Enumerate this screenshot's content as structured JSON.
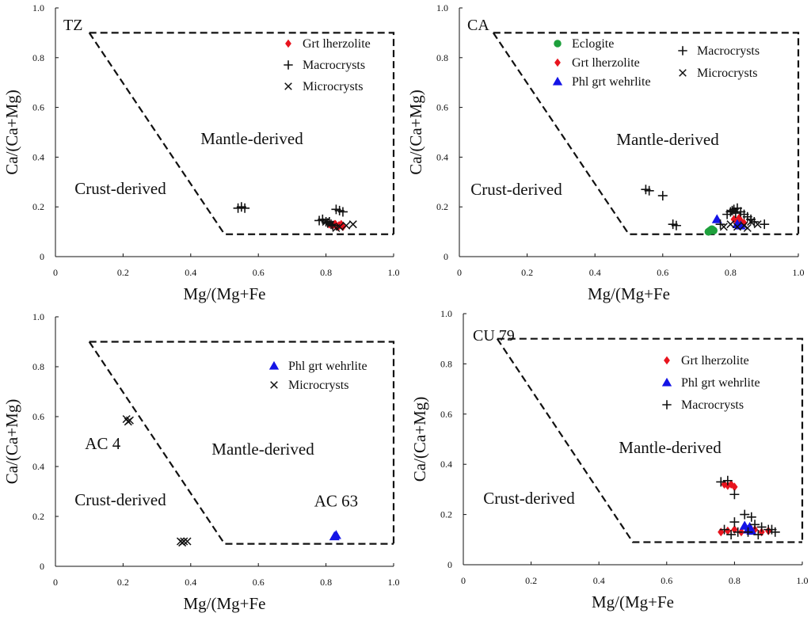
{
  "chart_data": [
    {
      "type": "scatter",
      "panel_id": "tz",
      "title": "TZ",
      "xlabel": "Mg/(Mg+Fe",
      "ylabel": "Ca/(Ca+Mg)",
      "xlim": [
        0,
        1.0
      ],
      "ylim": [
        0,
        1.0
      ],
      "x_ticks": [
        "0",
        "0.2",
        "0.4",
        "0.6",
        "0.8",
        "1.0"
      ],
      "y_ticks": [
        "0",
        "0.2",
        "0.4",
        "0.6",
        "0.8",
        "1.0"
      ],
      "boundary": [
        [
          0.1,
          0.9
        ],
        [
          0.5,
          0.09
        ],
        [
          1.0,
          0.09
        ]
      ],
      "top_line": [
        [
          0.1,
          0.9
        ],
        [
          1.0,
          0.9
        ]
      ],
      "regions": {
        "mantle": "Mantle-derived",
        "crust": "Crust-derived"
      },
      "legend": [
        {
          "label": "Grt lherzolite",
          "marker": "diamond",
          "color": "#e8141e"
        },
        {
          "label": "Macrocrysts",
          "marker": "plus",
          "color": "#111111"
        },
        {
          "label": "Microcrysts",
          "marker": "cross",
          "color": "#111111"
        }
      ],
      "series": [
        {
          "name": "Grt lherzolite",
          "marker": "diamond",
          "color": "#e8141e",
          "x": [
            0.81,
            0.82,
            0.825,
            0.83,
            0.835,
            0.84,
            0.845,
            0.85,
            0.828,
            0.838
          ],
          "y": [
            0.13,
            0.125,
            0.13,
            0.125,
            0.12,
            0.125,
            0.13,
            0.12,
            0.13,
            0.125
          ]
        },
        {
          "name": "Macrocrysts",
          "marker": "plus",
          "color": "#111111",
          "x": [
            0.54,
            0.55,
            0.56,
            0.78,
            0.79,
            0.8,
            0.805,
            0.815,
            0.83,
            0.84,
            0.85,
            0.82,
            0.81
          ],
          "y": [
            0.195,
            0.2,
            0.195,
            0.145,
            0.15,
            0.14,
            0.135,
            0.13,
            0.19,
            0.185,
            0.18,
            0.125,
            0.14
          ]
        },
        {
          "name": "Microcrysts",
          "marker": "cross",
          "color": "#111111",
          "x": [
            0.8,
            0.84,
            0.86,
            0.88,
            0.83
          ],
          "y": [
            0.14,
            0.12,
            0.125,
            0.13,
            0.115
          ]
        }
      ]
    },
    {
      "type": "scatter",
      "panel_id": "ca",
      "title": "CA",
      "xlabel": "Mg/(Mg+Fe",
      "ylabel": "Ca/(Ca+Mg)",
      "xlim": [
        0,
        1.0
      ],
      "ylim": [
        0,
        1.0
      ],
      "x_ticks": [
        "0",
        "0.2",
        "0.4",
        "0.6",
        "0.8",
        "1.0"
      ],
      "y_ticks": [
        "0",
        "0.2",
        "0.4",
        "0.6",
        "0.8",
        "1.0"
      ],
      "boundary": [
        [
          0.1,
          0.9
        ],
        [
          0.5,
          0.09
        ],
        [
          1.0,
          0.09
        ]
      ],
      "top_line": [
        [
          0.1,
          0.9
        ],
        [
          1.0,
          0.9
        ]
      ],
      "regions": {
        "mantle": "Mantle-derived",
        "crust": "Crust-derived"
      },
      "legend": [
        {
          "label": "Eclogite",
          "marker": "circle",
          "color": "#1ea03c"
        },
        {
          "label": "Grt lherzolite",
          "marker": "diamond",
          "color": "#e8141e"
        },
        {
          "label": "Phl grt wehrlite",
          "marker": "triangle",
          "color": "#1414e6"
        },
        {
          "label": "Macrocrysts",
          "marker": "plus",
          "color": "#111111"
        },
        {
          "label": "Microcrysts",
          "marker": "cross",
          "color": "#111111"
        }
      ],
      "series": [
        {
          "name": "Eclogite",
          "marker": "circle",
          "color": "#1ea03c",
          "x": [
            0.735,
            0.74,
            0.745,
            0.75
          ],
          "y": [
            0.1,
            0.105,
            0.11,
            0.105
          ]
        },
        {
          "name": "Grt lherzolite",
          "marker": "diamond",
          "color": "#e8141e",
          "x": [
            0.81,
            0.82,
            0.83,
            0.84,
            0.825
          ],
          "y": [
            0.15,
            0.14,
            0.145,
            0.135,
            0.155
          ]
        },
        {
          "name": "Phl grt wehrlite",
          "marker": "triangle",
          "color": "#1414e6",
          "x": [
            0.76,
            0.82,
            0.83
          ],
          "y": [
            0.15,
            0.13,
            0.125
          ]
        },
        {
          "name": "Macrocrysts",
          "marker": "plus",
          "color": "#111111",
          "x": [
            0.55,
            0.56,
            0.6,
            0.63,
            0.64,
            0.77,
            0.79,
            0.8,
            0.81,
            0.82,
            0.83,
            0.84,
            0.85,
            0.86,
            0.87,
            0.9,
            0.805,
            0.815
          ],
          "y": [
            0.27,
            0.265,
            0.245,
            0.13,
            0.125,
            0.13,
            0.17,
            0.18,
            0.19,
            0.195,
            0.18,
            0.17,
            0.16,
            0.15,
            0.14,
            0.13,
            0.185,
            0.175
          ]
        },
        {
          "name": "Microcrysts",
          "marker": "cross",
          "color": "#111111",
          "x": [
            0.78,
            0.8,
            0.82,
            0.84,
            0.86,
            0.88,
            0.85
          ],
          "y": [
            0.12,
            0.13,
            0.12,
            0.125,
            0.14,
            0.13,
            0.115
          ]
        }
      ]
    },
    {
      "type": "scatter",
      "panel_id": "ac",
      "title": "",
      "xlabel": "Mg/(Mg+Fe",
      "ylabel": "Ca/(Ca+Mg)",
      "xlim": [
        0,
        1.0
      ],
      "ylim": [
        0,
        1.0
      ],
      "x_ticks": [
        "0",
        "0.2",
        "0.4",
        "0.6",
        "0.8",
        "1.0"
      ],
      "y_ticks": [
        "0",
        "0.2",
        "0.4",
        "0.6",
        "0.8",
        "1.0"
      ],
      "boundary": [
        [
          0.1,
          0.9
        ],
        [
          0.5,
          0.09
        ],
        [
          1.0,
          0.09
        ]
      ],
      "top_line": [
        [
          0.1,
          0.9
        ],
        [
          1.0,
          0.9
        ]
      ],
      "regions": {
        "mantle": "Mantle-derived",
        "crust": "Crust-derived"
      },
      "annotations": [
        {
          "text": "AC 4",
          "x": 0.14,
          "y": 0.47
        },
        {
          "text": "AC 63",
          "x": 0.83,
          "y": 0.24
        }
      ],
      "legend": [
        {
          "label": "Phl grt wehrlite",
          "marker": "triangle",
          "color": "#1414e6"
        },
        {
          "label": "Microcrysts",
          "marker": "cross",
          "color": "#111111"
        }
      ],
      "series": [
        {
          "name": "Phl grt wehrlite",
          "marker": "triangle",
          "color": "#1414e6",
          "x": [
            0.83,
            0.825
          ],
          "y": [
            0.125,
            0.12
          ]
        },
        {
          "name": "Microcrysts",
          "marker": "cross",
          "color": "#111111",
          "x": [
            0.21,
            0.215,
            0.22,
            0.37,
            0.375,
            0.38,
            0.39
          ],
          "y": [
            0.59,
            0.58,
            0.585,
            0.1,
            0.095,
            0.1,
            0.1
          ]
        }
      ]
    },
    {
      "type": "scatter",
      "panel_id": "cu79",
      "title": "CU 79",
      "xlabel": "Mg/(Mg+Fe",
      "ylabel": "Ca/(Ca+Mg)",
      "xlim": [
        0,
        1.0
      ],
      "ylim": [
        0,
        1.0
      ],
      "x_ticks": [
        "0",
        "0.2",
        "0.4",
        "0.6",
        "0.8",
        "1.0"
      ],
      "y_ticks": [
        "0",
        "0.2",
        "0.4",
        "0.6",
        "0.8",
        "1.0"
      ],
      "boundary": [
        [
          0.1,
          0.9
        ],
        [
          0.5,
          0.09
        ],
        [
          1.0,
          0.09
        ]
      ],
      "top_line": [
        [
          0.1,
          0.9
        ],
        [
          1.0,
          0.9
        ]
      ],
      "regions": {
        "mantle": "Mantle-derived",
        "crust": "Crust-derived"
      },
      "legend": [
        {
          "label": "Grt lherzolite",
          "marker": "diamond",
          "color": "#e8141e"
        },
        {
          "label": "Phl grt wehrlite",
          "marker": "triangle",
          "color": "#1414e6"
        },
        {
          "label": "Macrocrysts",
          "marker": "plus",
          "color": "#111111"
        }
      ],
      "series": [
        {
          "name": "Grt lherzolite",
          "marker": "diamond",
          "color": "#e8141e",
          "x": [
            0.77,
            0.78,
            0.79,
            0.8,
            0.76,
            0.78,
            0.8,
            0.82,
            0.84,
            0.86,
            0.88,
            0.9
          ],
          "y": [
            0.32,
            0.315,
            0.32,
            0.31,
            0.13,
            0.135,
            0.14,
            0.13,
            0.135,
            0.14,
            0.13,
            0.135
          ]
        },
        {
          "name": "Phl grt wehrlite",
          "marker": "triangle",
          "color": "#1414e6",
          "x": [
            0.83,
            0.84,
            0.845,
            0.85
          ],
          "y": [
            0.155,
            0.14,
            0.15,
            0.135
          ]
        },
        {
          "name": "Macrocrysts",
          "marker": "plus",
          "color": "#111111",
          "x": [
            0.76,
            0.78,
            0.8,
            0.81,
            0.83,
            0.85,
            0.86,
            0.88,
            0.9,
            0.92,
            0.77,
            0.79,
            0.8,
            0.84,
            0.87,
            0.91
          ],
          "y": [
            0.33,
            0.335,
            0.28,
            0.13,
            0.2,
            0.19,
            0.16,
            0.15,
            0.14,
            0.13,
            0.14,
            0.12,
            0.17,
            0.13,
            0.12,
            0.14
          ]
        }
      ]
    }
  ]
}
